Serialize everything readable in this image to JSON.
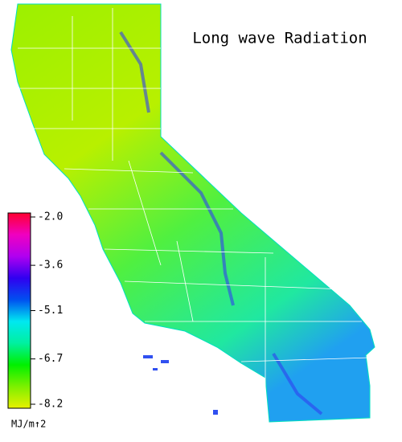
{
  "title": "Long wave Radiation",
  "colorbar": {
    "lim": [
      -8.2,
      -2.0
    ],
    "ticks": [
      {
        "value": -2.0,
        "label": "-2.0"
      },
      {
        "value": -3.6,
        "label": "-3.6"
      },
      {
        "value": -5.1,
        "label": "-5.1"
      },
      {
        "value": -6.7,
        "label": "-6.7"
      },
      {
        "value": -8.2,
        "label": "-8.2"
      }
    ],
    "colors": [
      "#e8f000",
      "#7cf000",
      "#00f000",
      "#00f0a0",
      "#00e8f0",
      "#0050f0",
      "#3000f0",
      "#b000f0",
      "#f000c0",
      "#ff0030"
    ],
    "unit": "MJ/m↑2"
  }
}
